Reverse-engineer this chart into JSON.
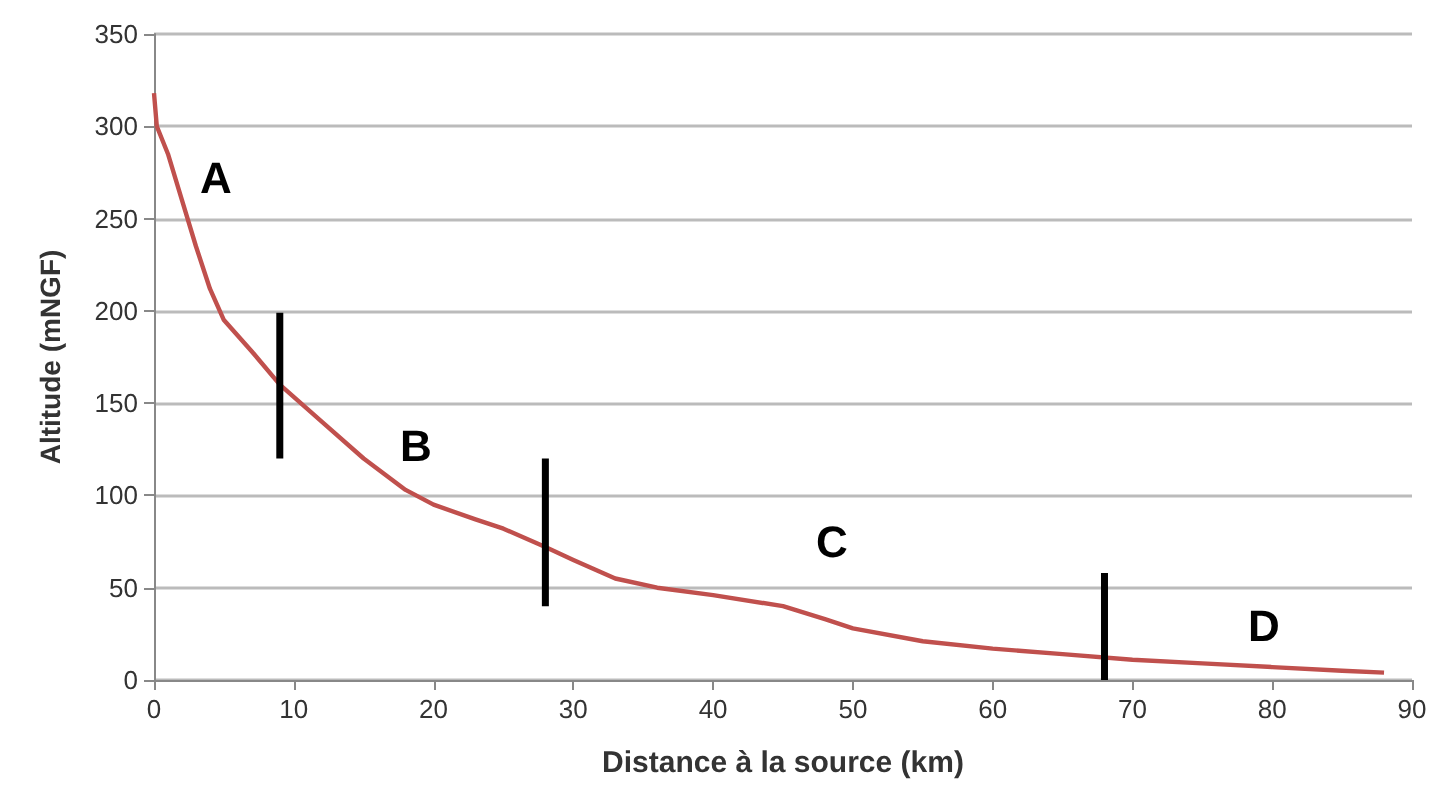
{
  "chart_data": {
    "type": "line",
    "xlabel": "Distance à la source (km)",
    "ylabel": "Altitude (mNGF)",
    "xlim": [
      0,
      90
    ],
    "xticks": [
      0,
      10,
      20,
      30,
      40,
      50,
      60,
      70,
      80,
      90
    ],
    "ylim": [
      0,
      350
    ],
    "yticks": [
      0,
      50,
      100,
      150,
      200,
      250,
      300,
      350
    ],
    "grid": "y",
    "marker": "none",
    "line_style": "solid",
    "series": [
      {
        "color": "#c0504d",
        "x": [
          0,
          0.2,
          1,
          2,
          3,
          4,
          5,
          7,
          9,
          12,
          15,
          18,
          20,
          23,
          25,
          28,
          30,
          33,
          36,
          40,
          45,
          48,
          50,
          55,
          60,
          65,
          70,
          75,
          80,
          85,
          88
        ],
        "values": [
          318,
          300,
          285,
          260,
          235,
          212,
          195,
          178,
          160,
          140,
          120,
          103,
          95,
          87,
          82,
          72,
          65,
          55,
          50,
          46,
          40,
          33,
          28,
          21,
          17,
          14,
          11,
          9,
          7,
          5,
          4
        ]
      },
      {
        "color": "#000000",
        "x": [
          9,
          9
        ],
        "values": [
          120,
          199
        ]
      },
      {
        "color": "#000000",
        "x": [
          28,
          28
        ],
        "values": [
          40,
          120
        ]
      },
      {
        "color": "#000000",
        "x": [
          68,
          68
        ],
        "values": [
          0,
          58
        ]
      }
    ],
    "annotations": [
      "A",
      "B",
      "C",
      "D"
    ]
  }
}
